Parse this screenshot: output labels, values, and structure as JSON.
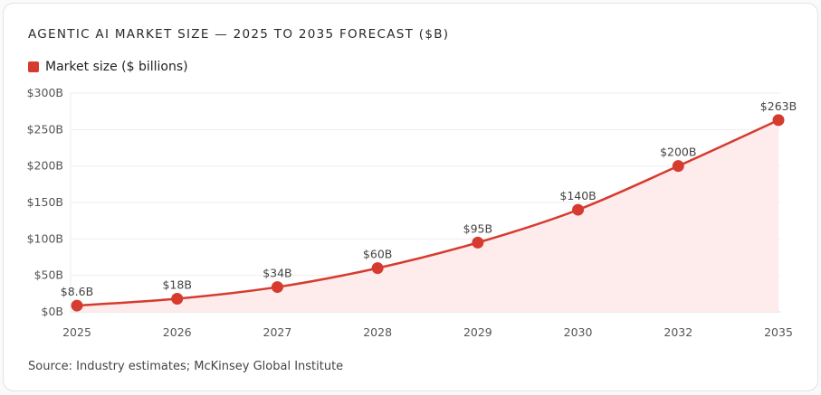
{
  "chart_data": {
    "type": "line",
    "title": "AGENTIC AI MARKET SIZE — 2025 TO 2035 FORECAST ($B)",
    "categories": [
      "2025",
      "2026",
      "2027",
      "2028",
      "2029",
      "2030",
      "2032",
      "2035"
    ],
    "series": [
      {
        "name": "Market size ($ billions)",
        "values": [
          8.6,
          18,
          34,
          60,
          95,
          140,
          200,
          263
        ],
        "labels": [
          "$8.6B",
          "$18B",
          "$34B",
          "$60B",
          "$95B",
          "$140B",
          "$200B",
          "$263B"
        ],
        "color": "#d63b2f",
        "fill": "#fdeceb"
      }
    ],
    "ylim": [
      0,
      300
    ],
    "yticks": [
      0,
      50,
      100,
      150,
      200,
      250,
      300
    ],
    "ytick_labels": [
      "$0B",
      "$50B",
      "$100B",
      "$150B",
      "$200B",
      "$250B",
      "$300B"
    ],
    "grid": true,
    "legend_placement": "top-left",
    "source": "Source: Industry estimates; McKinsey Global Institute"
  }
}
